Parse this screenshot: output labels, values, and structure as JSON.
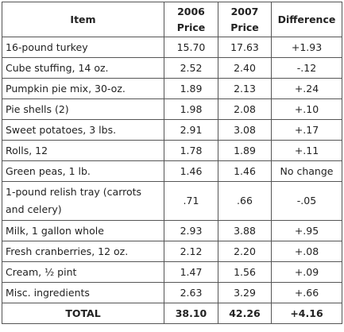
{
  "headers": {
    "item": "Item",
    "price_2006": "2006 Price",
    "price_2007": "2007 Price",
    "difference": "Difference"
  },
  "rows": [
    {
      "item": "16-pound turkey",
      "p2006": "15.70",
      "p2007": "17.63",
      "diff": "+1.93"
    },
    {
      "item": "Cube stuffing, 14 oz.",
      "p2006": "2.52",
      "p2007": "2.40",
      "diff": "-.12"
    },
    {
      "item": "Pumpkin pie mix, 30-oz.",
      "p2006": "1.89",
      "p2007": "2.13",
      "diff": "+.24"
    },
    {
      "item": "Pie shells (2)",
      "p2006": "1.98",
      "p2007": "2.08",
      "diff": "+.10"
    },
    {
      "item": "Sweet potatoes, 3 lbs.",
      "p2006": "2.91",
      "p2007": "3.08",
      "diff": "+.17"
    },
    {
      "item": "Rolls, 12",
      "p2006": "1.78",
      "p2007": "1.89",
      "diff": "+.11"
    },
    {
      "item": "Green peas, 1 lb.",
      "p2006": "1.46",
      "p2007": "1.46",
      "diff": "No change"
    },
    {
      "item": "1-pound relish tray  (carrots and celery)",
      "p2006": ".71",
      "p2007": ".66",
      "diff": "-.05"
    },
    {
      "item": "Milk, 1 gallon whole",
      "p2006": "2.93",
      "p2007": "3.88",
      "diff": "+.95"
    },
    {
      "item": "Fresh cranberries, 12 oz.",
      "p2006": "2.12",
      "p2007": "2.20",
      "diff": "+.08"
    },
    {
      "item": "Cream, ½ pint",
      "p2006": "1.47",
      "p2007": "1.56",
      "diff": "+.09"
    },
    {
      "item": "Misc. ingredients",
      "p2006": "2.63",
      "p2007": "3.29",
      "diff": "+.66"
    }
  ],
  "total": {
    "item": "TOTAL",
    "p2006": "38.10",
    "p2007": "42.26",
    "diff": "+4.16"
  }
}
